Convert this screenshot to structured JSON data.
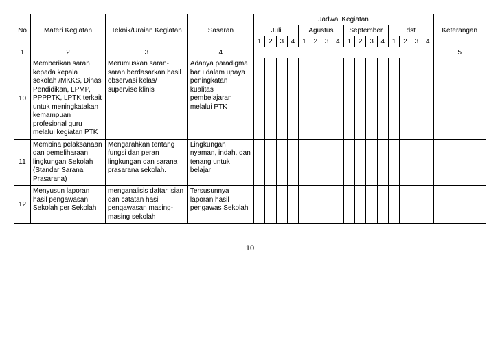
{
  "header": {
    "no": "No",
    "materi": "Materi Kegiatan",
    "teknik": "Teknik/Uraian Kegiatan",
    "sasaran": "Sasaran",
    "jadwal": "Jadwal Kegiatan",
    "keterangan": "Keterangan",
    "months": [
      "Juli",
      "Agustus",
      "September",
      "dst"
    ],
    "weeks": [
      "1",
      "2",
      "3",
      "4",
      "1",
      "2",
      "3",
      "4",
      "1",
      "2",
      "3",
      "4",
      "1",
      "2",
      "3",
      "4"
    ]
  },
  "numrow": [
    "1",
    "2",
    "3",
    "4",
    "5"
  ],
  "rows": [
    {
      "no": "10",
      "materi": "Memberikan saran kepada kepala sekolah /MKKS, Dinas Pendidikan, LPMP, PPPPTK, LPTK terkait untuk meningkatakan kemampuan profesional guru melalui kegiatan PTK",
      "teknik": "Merumuskan saran-saran berdasarkan hasil observasi kelas/ supervise klinis",
      "sasaran": "Adanya paradigma baru dalam upaya peningkatan kualitas pembelajaran melalui PTK"
    },
    {
      "no": "11",
      "materi": "Membina pelaksanaan dan pemeliharaan lingkungan Sekolah (Standar Sarana Prasarana)",
      "teknik": "Mengarahkan tentang fungsi dan peran lingkungan dan sarana prasarana sekolah.",
      "sasaran": "Lingkungan nyaman, indah, dan tenang untuk belajar"
    },
    {
      "no": "12",
      "materi": "Menyusun laporan hasil pengawasan Sekolah per Sekolah",
      "teknik": "menganalisis daftar isian dan catatan hasil pengawasan masing-masing sekolah",
      "sasaran": "Tersusunnya laporan hasil pengawas Sekolah"
    }
  ],
  "pageNumber": "10"
}
